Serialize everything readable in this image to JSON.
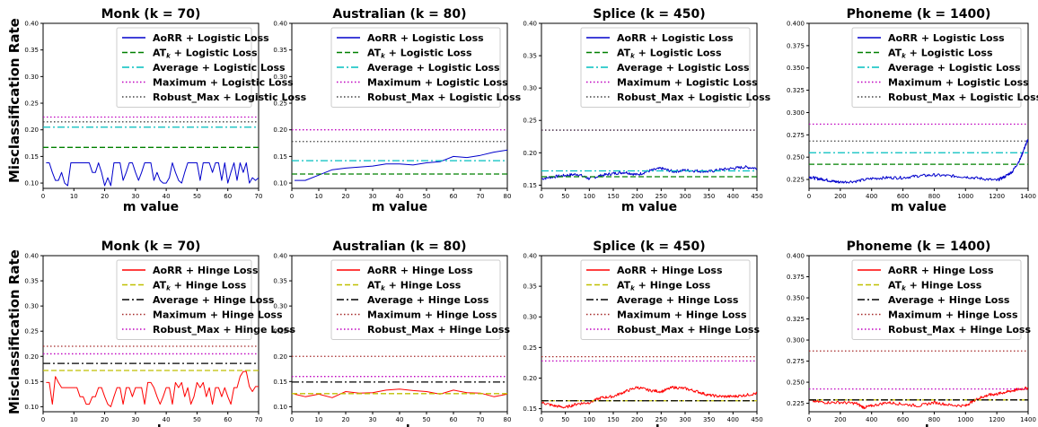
{
  "row_labels": [
    "Misclassification Rate",
    "Misclassification Rate"
  ],
  "chart_data": [
    {
      "type": "line",
      "title": "Monk (k = 70)",
      "xlabel": "m value",
      "ylabel": "Misclassification Rate",
      "xlim": [
        0,
        70
      ],
      "ylim": [
        0.09,
        0.4
      ],
      "xticks": [
        "0",
        "10",
        "20",
        "30",
        "40",
        "50",
        "60",
        "70"
      ],
      "yticks": [
        "0.10",
        "0.15",
        "0.20",
        "0.25",
        "0.30",
        "0.35",
        "0.40"
      ],
      "legend_position": "top-right",
      "series": [
        {
          "name": "AoRR + Logistic Loss",
          "color": "#0000cc",
          "style": "solid",
          "x": [
            1,
            2,
            3,
            4,
            5,
            6,
            7,
            8,
            9,
            10,
            11,
            12,
            13,
            14,
            15,
            16,
            17,
            18,
            19,
            20,
            21,
            22,
            23,
            24,
            25,
            26,
            27,
            28,
            29,
            30,
            31,
            32,
            33,
            34,
            35,
            36,
            37,
            38,
            39,
            40,
            41,
            42,
            43,
            44,
            45,
            46,
            47,
            48,
            49,
            50,
            51,
            52,
            53,
            54,
            55,
            56,
            57,
            58,
            59,
            60,
            61,
            62,
            63,
            64,
            65,
            66,
            67,
            68,
            69,
            70
          ],
          "values": [
            0.138,
            0.138,
            0.12,
            0.105,
            0.105,
            0.12,
            0.1,
            0.095,
            0.138,
            0.138,
            0.138,
            0.138,
            0.138,
            0.138,
            0.138,
            0.12,
            0.12,
            0.138,
            0.12,
            0.095,
            0.11,
            0.095,
            0.138,
            0.138,
            0.138,
            0.105,
            0.12,
            0.138,
            0.138,
            0.12,
            0.105,
            0.12,
            0.138,
            0.138,
            0.138,
            0.105,
            0.12,
            0.105,
            0.1,
            0.1,
            0.11,
            0.138,
            0.12,
            0.105,
            0.1,
            0.12,
            0.138,
            0.138,
            0.138,
            0.138,
            0.105,
            0.138,
            0.138,
            0.138,
            0.12,
            0.138,
            0.138,
            0.105,
            0.138,
            0.1,
            0.12,
            0.138,
            0.105,
            0.138,
            0.12,
            0.138,
            0.1,
            0.11,
            0.105,
            0.11
          ]
        },
        {
          "name": "AT_k + Logistic Loss",
          "color": "#008000",
          "style": "dashed",
          "constant": 0.167
        },
        {
          "name": "Average + Logistic Loss",
          "color": "#00bfbf",
          "style": "dashdot",
          "constant": 0.205
        },
        {
          "name": "Maximum + Logistic Loss",
          "color": "#bf00bf",
          "style": "dotted",
          "constant": 0.224
        },
        {
          "name": "Robust_Max + Logistic Loss",
          "color": "#404040",
          "style": "dotted",
          "constant": 0.215
        }
      ]
    },
    {
      "type": "line",
      "title": "Australian (k = 80)",
      "xlabel": "m value",
      "ylabel": "",
      "xlim": [
        0,
        80
      ],
      "ylim": [
        0.09,
        0.4
      ],
      "xticks": [
        "0",
        "10",
        "20",
        "30",
        "40",
        "50",
        "60",
        "70",
        "80"
      ],
      "yticks": [
        "0.10",
        "0.15",
        "0.20",
        "0.25",
        "0.30",
        "0.35",
        "0.40"
      ],
      "legend_position": "top-right",
      "series": [
        {
          "name": "AoRR + Logistic Loss",
          "color": "#0000cc",
          "style": "solid",
          "x": [
            1,
            5,
            10,
            15,
            20,
            25,
            30,
            35,
            40,
            45,
            50,
            55,
            60,
            65,
            70,
            75,
            80
          ],
          "values": [
            0.105,
            0.105,
            0.115,
            0.125,
            0.128,
            0.13,
            0.132,
            0.136,
            0.136,
            0.134,
            0.138,
            0.14,
            0.15,
            0.148,
            0.152,
            0.158,
            0.162
          ]
        },
        {
          "name": "AT_k + Logistic Loss",
          "color": "#008000",
          "style": "dashed",
          "constant": 0.117
        },
        {
          "name": "Average + Logistic Loss",
          "color": "#00bfbf",
          "style": "dashdot",
          "constant": 0.142
        },
        {
          "name": "Maximum + Logistic Loss",
          "color": "#bf00bf",
          "style": "dotted",
          "constant": 0.2
        },
        {
          "name": "Robust_Max + Logistic Loss",
          "color": "#404040",
          "style": "dotted",
          "constant": 0.178
        }
      ]
    },
    {
      "type": "line",
      "title": "Splice (k = 450)",
      "xlabel": "m value",
      "ylabel": "",
      "xlim": [
        0,
        450
      ],
      "ylim": [
        0.145,
        0.4
      ],
      "xticks": [
        "0",
        "50",
        "100",
        "150",
        "200",
        "250",
        "300",
        "350",
        "400",
        "450"
      ],
      "yticks": [
        "0.15",
        "0.20",
        "0.25",
        "0.30",
        "0.35",
        "0.40"
      ],
      "legend_position": "top-right",
      "series": [
        {
          "name": "AoRR + Logistic Loss",
          "color": "#0000cc",
          "style": "solid",
          "x": [
            1,
            25,
            50,
            75,
            100,
            125,
            150,
            175,
            200,
            225,
            250,
            275,
            300,
            325,
            350,
            375,
            400,
            425,
            450
          ],
          "values": [
            0.16,
            0.163,
            0.165,
            0.167,
            0.16,
            0.165,
            0.168,
            0.17,
            0.166,
            0.172,
            0.176,
            0.171,
            0.173,
            0.172,
            0.171,
            0.174,
            0.176,
            0.178,
            0.176
          ]
        },
        {
          "name": "AT_k + Logistic Loss",
          "color": "#008000",
          "style": "dashed",
          "constant": 0.163
        },
        {
          "name": "Average + Logistic Loss",
          "color": "#00bfbf",
          "style": "dashdot",
          "constant": 0.172
        },
        {
          "name": "Maximum + Logistic Loss",
          "color": "#bf00bf",
          "style": "dotted",
          "constant": 0.235
        },
        {
          "name": "Robust_Max + Logistic Loss",
          "color": "#404040",
          "style": "dotted",
          "constant": 0.235
        }
      ]
    },
    {
      "type": "line",
      "title": "Phoneme (k = 1400)",
      "xlabel": "m value",
      "ylabel": "",
      "xlim": [
        0,
        1400
      ],
      "ylim": [
        0.215,
        0.4
      ],
      "xticks": [
        "0",
        "200",
        "400",
        "600",
        "800",
        "1000",
        "1200",
        "1400"
      ],
      "yticks": [
        "0.225",
        "0.250",
        "0.275",
        "0.300",
        "0.325",
        "0.350",
        "0.375",
        "0.400"
      ],
      "legend_position": "top-right",
      "series": [
        {
          "name": "AoRR + Logistic Loss",
          "color": "#0000cc",
          "style": "solid",
          "x": [
            1,
            50,
            100,
            150,
            200,
            300,
            400,
            500,
            600,
            700,
            800,
            900,
            1000,
            1100,
            1200,
            1250,
            1300,
            1350,
            1380,
            1400
          ],
          "values": [
            0.228,
            0.226,
            0.225,
            0.223,
            0.222,
            0.223,
            0.226,
            0.227,
            0.227,
            0.229,
            0.23,
            0.229,
            0.228,
            0.226,
            0.224,
            0.228,
            0.234,
            0.248,
            0.262,
            0.27
          ]
        },
        {
          "name": "AT_k + Logistic Loss",
          "color": "#008000",
          "style": "dashed",
          "constant": 0.242
        },
        {
          "name": "Average + Logistic Loss",
          "color": "#00bfbf",
          "style": "dashdot",
          "constant": 0.255
        },
        {
          "name": "Maximum + Logistic Loss",
          "color": "#bf00bf",
          "style": "dotted",
          "constant": 0.287
        },
        {
          "name": "Robust_Max + Logistic Loss",
          "color": "#404040",
          "style": "dotted",
          "constant": 0.268
        }
      ]
    },
    {
      "type": "line",
      "title": "Monk (k = 70)",
      "xlabel": "m value",
      "ylabel": "Misclassification Rate",
      "xlim": [
        0,
        70
      ],
      "ylim": [
        0.09,
        0.4
      ],
      "xticks": [
        "0",
        "10",
        "20",
        "30",
        "40",
        "50",
        "60",
        "70"
      ],
      "yticks": [
        "0.10",
        "0.15",
        "0.20",
        "0.25",
        "0.30",
        "0.35",
        "0.40"
      ],
      "legend_position": "top-right",
      "series": [
        {
          "name": "AoRR + Hinge Loss",
          "color": "#ff0000",
          "style": "solid",
          "x": [
            1,
            2,
            3,
            4,
            5,
            6,
            7,
            8,
            9,
            10,
            11,
            12,
            13,
            14,
            15,
            16,
            17,
            18,
            19,
            20,
            21,
            22,
            23,
            24,
            25,
            26,
            27,
            28,
            29,
            30,
            31,
            32,
            33,
            34,
            35,
            36,
            37,
            38,
            39,
            40,
            41,
            42,
            43,
            44,
            45,
            46,
            47,
            48,
            49,
            50,
            51,
            52,
            53,
            54,
            55,
            56,
            57,
            58,
            59,
            60,
            61,
            62,
            63,
            64,
            65,
            66,
            67,
            68,
            69,
            70
          ],
          "values": [
            0.148,
            0.148,
            0.105,
            0.16,
            0.148,
            0.138,
            0.138,
            0.138,
            0.138,
            0.138,
            0.138,
            0.12,
            0.12,
            0.105,
            0.105,
            0.12,
            0.12,
            0.138,
            0.138,
            0.12,
            0.105,
            0.1,
            0.12,
            0.138,
            0.138,
            0.105,
            0.138,
            0.138,
            0.12,
            0.138,
            0.138,
            0.138,
            0.105,
            0.148,
            0.148,
            0.138,
            0.12,
            0.105,
            0.12,
            0.138,
            0.138,
            0.105,
            0.148,
            0.138,
            0.148,
            0.12,
            0.138,
            0.105,
            0.12,
            0.148,
            0.138,
            0.148,
            0.12,
            0.138,
            0.105,
            0.138,
            0.138,
            0.12,
            0.138,
            0.12,
            0.105,
            0.138,
            0.138,
            0.16,
            0.17,
            0.17,
            0.14,
            0.13,
            0.14,
            0.14
          ]
        },
        {
          "name": "AT_k + Hinge Loss",
          "color": "#bfbf00",
          "style": "dashed",
          "constant": 0.172
        },
        {
          "name": "Average + Hinge Loss",
          "color": "#000000",
          "style": "dashdot",
          "constant": 0.186
        },
        {
          "name": "Maximum + Hinge Loss",
          "color": "#a52a2a",
          "style": "dotted",
          "constant": 0.22
        },
        {
          "name": "Robust_Max + Hinge Loss",
          "color": "#bf00bf",
          "style": "dotted",
          "constant": 0.205
        }
      ]
    },
    {
      "type": "line",
      "title": "Australian (k = 80)",
      "xlabel": "m value",
      "ylabel": "",
      "xlim": [
        0,
        80
      ],
      "ylim": [
        0.09,
        0.4
      ],
      "xticks": [
        "0",
        "10",
        "20",
        "30",
        "40",
        "50",
        "60",
        "70",
        "80"
      ],
      "yticks": [
        "0.10",
        "0.15",
        "0.20",
        "0.25",
        "0.30",
        "0.35",
        "0.40"
      ],
      "legend_position": "top-right",
      "series": [
        {
          "name": "AoRR + Hinge Loss",
          "color": "#ff0000",
          "style": "solid",
          "x": [
            1,
            5,
            10,
            15,
            20,
            25,
            30,
            35,
            40,
            45,
            50,
            55,
            60,
            65,
            70,
            75,
            80
          ],
          "values": [
            0.125,
            0.12,
            0.125,
            0.118,
            0.13,
            0.127,
            0.128,
            0.133,
            0.135,
            0.132,
            0.13,
            0.125,
            0.133,
            0.128,
            0.127,
            0.12,
            0.125
          ]
        },
        {
          "name": "AT_k + Hinge Loss",
          "color": "#bfbf00",
          "style": "dashed",
          "constant": 0.126
        },
        {
          "name": "Average + Hinge Loss",
          "color": "#000000",
          "style": "dashdot",
          "constant": 0.149
        },
        {
          "name": "Maximum + Hinge Loss",
          "color": "#a52a2a",
          "style": "dotted",
          "constant": 0.2
        },
        {
          "name": "Robust_Max + Hinge Loss",
          "color": "#bf00bf",
          "style": "dotted",
          "constant": 0.16
        }
      ]
    },
    {
      "type": "line",
      "title": "Splice (k = 450)",
      "xlabel": "m value",
      "ylabel": "",
      "xlim": [
        0,
        450
      ],
      "ylim": [
        0.145,
        0.4
      ],
      "xticks": [
        "0",
        "50",
        "100",
        "150",
        "200",
        "250",
        "300",
        "350",
        "400",
        "450"
      ],
      "yticks": [
        "0.15",
        "0.20",
        "0.25",
        "0.30",
        "0.35",
        "0.40"
      ],
      "legend_position": "top-right",
      "series": [
        {
          "name": "AoRR + Hinge Loss",
          "color": "#ff0000",
          "style": "solid",
          "x": [
            1,
            25,
            50,
            75,
            100,
            125,
            150,
            175,
            200,
            225,
            250,
            275,
            300,
            325,
            350,
            375,
            400,
            425,
            450
          ],
          "values": [
            0.16,
            0.155,
            0.152,
            0.158,
            0.16,
            0.168,
            0.17,
            0.178,
            0.185,
            0.18,
            0.178,
            0.185,
            0.183,
            0.178,
            0.172,
            0.17,
            0.17,
            0.172,
            0.175
          ]
        },
        {
          "name": "AT_k + Hinge Loss",
          "color": "#bfbf00",
          "style": "dashed",
          "constant": 0.163
        },
        {
          "name": "Average + Hinge Loss",
          "color": "#000000",
          "style": "dashdot",
          "constant": 0.163
        },
        {
          "name": "Maximum + Hinge Loss",
          "color": "#a52a2a",
          "style": "dotted",
          "constant": 0.235
        },
        {
          "name": "Robust_Max + Hinge Loss",
          "color": "#bf00bf",
          "style": "dotted",
          "constant": 0.228
        }
      ]
    },
    {
      "type": "line",
      "title": "Phoneme (k = 1400)",
      "xlabel": "m value",
      "ylabel": "",
      "xlim": [
        0,
        1400
      ],
      "ylim": [
        0.215,
        0.4
      ],
      "xticks": [
        "0",
        "200",
        "400",
        "600",
        "800",
        "1000",
        "1200",
        "1400"
      ],
      "yticks": [
        "0.225",
        "0.250",
        "0.275",
        "0.300",
        "0.325",
        "0.350",
        "0.375",
        "0.400"
      ],
      "legend_position": "top-right",
      "series": [
        {
          "name": "AoRR + Hinge Loss",
          "color": "#ff0000",
          "style": "solid",
          "x": [
            1,
            100,
            200,
            300,
            350,
            400,
            500,
            600,
            700,
            800,
            900,
            1000,
            1050,
            1100,
            1150,
            1200,
            1250,
            1300,
            1350,
            1400
          ],
          "values": [
            0.228,
            0.226,
            0.226,
            0.225,
            0.22,
            0.222,
            0.226,
            0.224,
            0.222,
            0.226,
            0.223,
            0.222,
            0.228,
            0.232,
            0.235,
            0.236,
            0.238,
            0.24,
            0.242,
            0.243
          ]
        },
        {
          "name": "AT_k + Hinge Loss",
          "color": "#bfbf00",
          "style": "dashed",
          "constant": 0.229
        },
        {
          "name": "Average + Hinge Loss",
          "color": "#000000",
          "style": "dashdot",
          "constant": 0.229
        },
        {
          "name": "Maximum + Hinge Loss",
          "color": "#a52a2a",
          "style": "dotted",
          "constant": 0.287
        },
        {
          "name": "Robust_Max + Hinge Loss",
          "color": "#bf00bf",
          "style": "dotted",
          "constant": 0.242
        }
      ]
    }
  ]
}
